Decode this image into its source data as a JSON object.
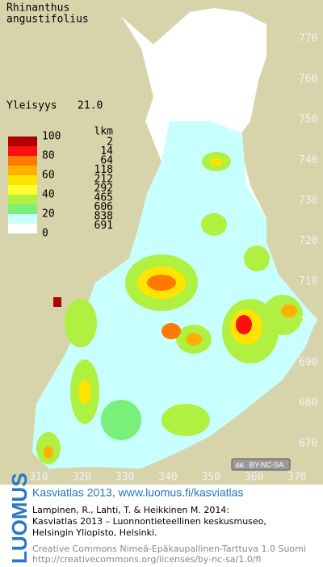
{
  "species": [
    "Rhinanthus",
    "angustifolius"
  ],
  "frequency": {
    "label": "Yleisyys",
    "value": "21.0"
  },
  "legend": {
    "count_header": "lkm",
    "class_labels": [
      100,
      80,
      60,
      40,
      20,
      0
    ],
    "classes": [
      {
        "color": "#b00000",
        "count": 2
      },
      {
        "color": "#ff1010",
        "count": 14
      },
      {
        "color": "#ff7a00",
        "count": 64
      },
      {
        "color": "#ffb000",
        "count": 118
      },
      {
        "color": "#ffe400",
        "count": 212
      },
      {
        "color": "#ffff30",
        "count": 292
      },
      {
        "color": "#b0f040",
        "count": 465
      },
      {
        "color": "#78f07a",
        "count": 606
      },
      {
        "color": "#c8ffff",
        "count": 838
      },
      {
        "color": "#ffffff",
        "count": 691
      }
    ]
  },
  "y_labels": [
    770,
    760,
    750,
    740,
    730,
    720,
    710,
    700,
    690,
    680,
    670
  ],
  "x_labels": [
    310,
    320,
    330,
    340,
    350,
    360,
    370
  ],
  "license_badge": [
    "cc",
    "BY-NC-SA"
  ],
  "footer": {
    "brand": "LUOMUS",
    "headline": "Kasviatlas 2013, www.luomus.fi/kasviatlas",
    "citation": [
      "Lampinen, R., Lahti, T. & Heikkinen M. 2014:",
      "Kasviatlas 2013 – Luonnontieteellinen keskusmuseo,",
      "Helsingin Yliopisto, Helsinki."
    ],
    "license": [
      "Creative Commons Nimeä-Epäkaupallinen-Tarttuva 1.0 Suomi",
      "http://creativecommons.org/licenses/by-nc-sa/1.0/fi"
    ]
  }
}
